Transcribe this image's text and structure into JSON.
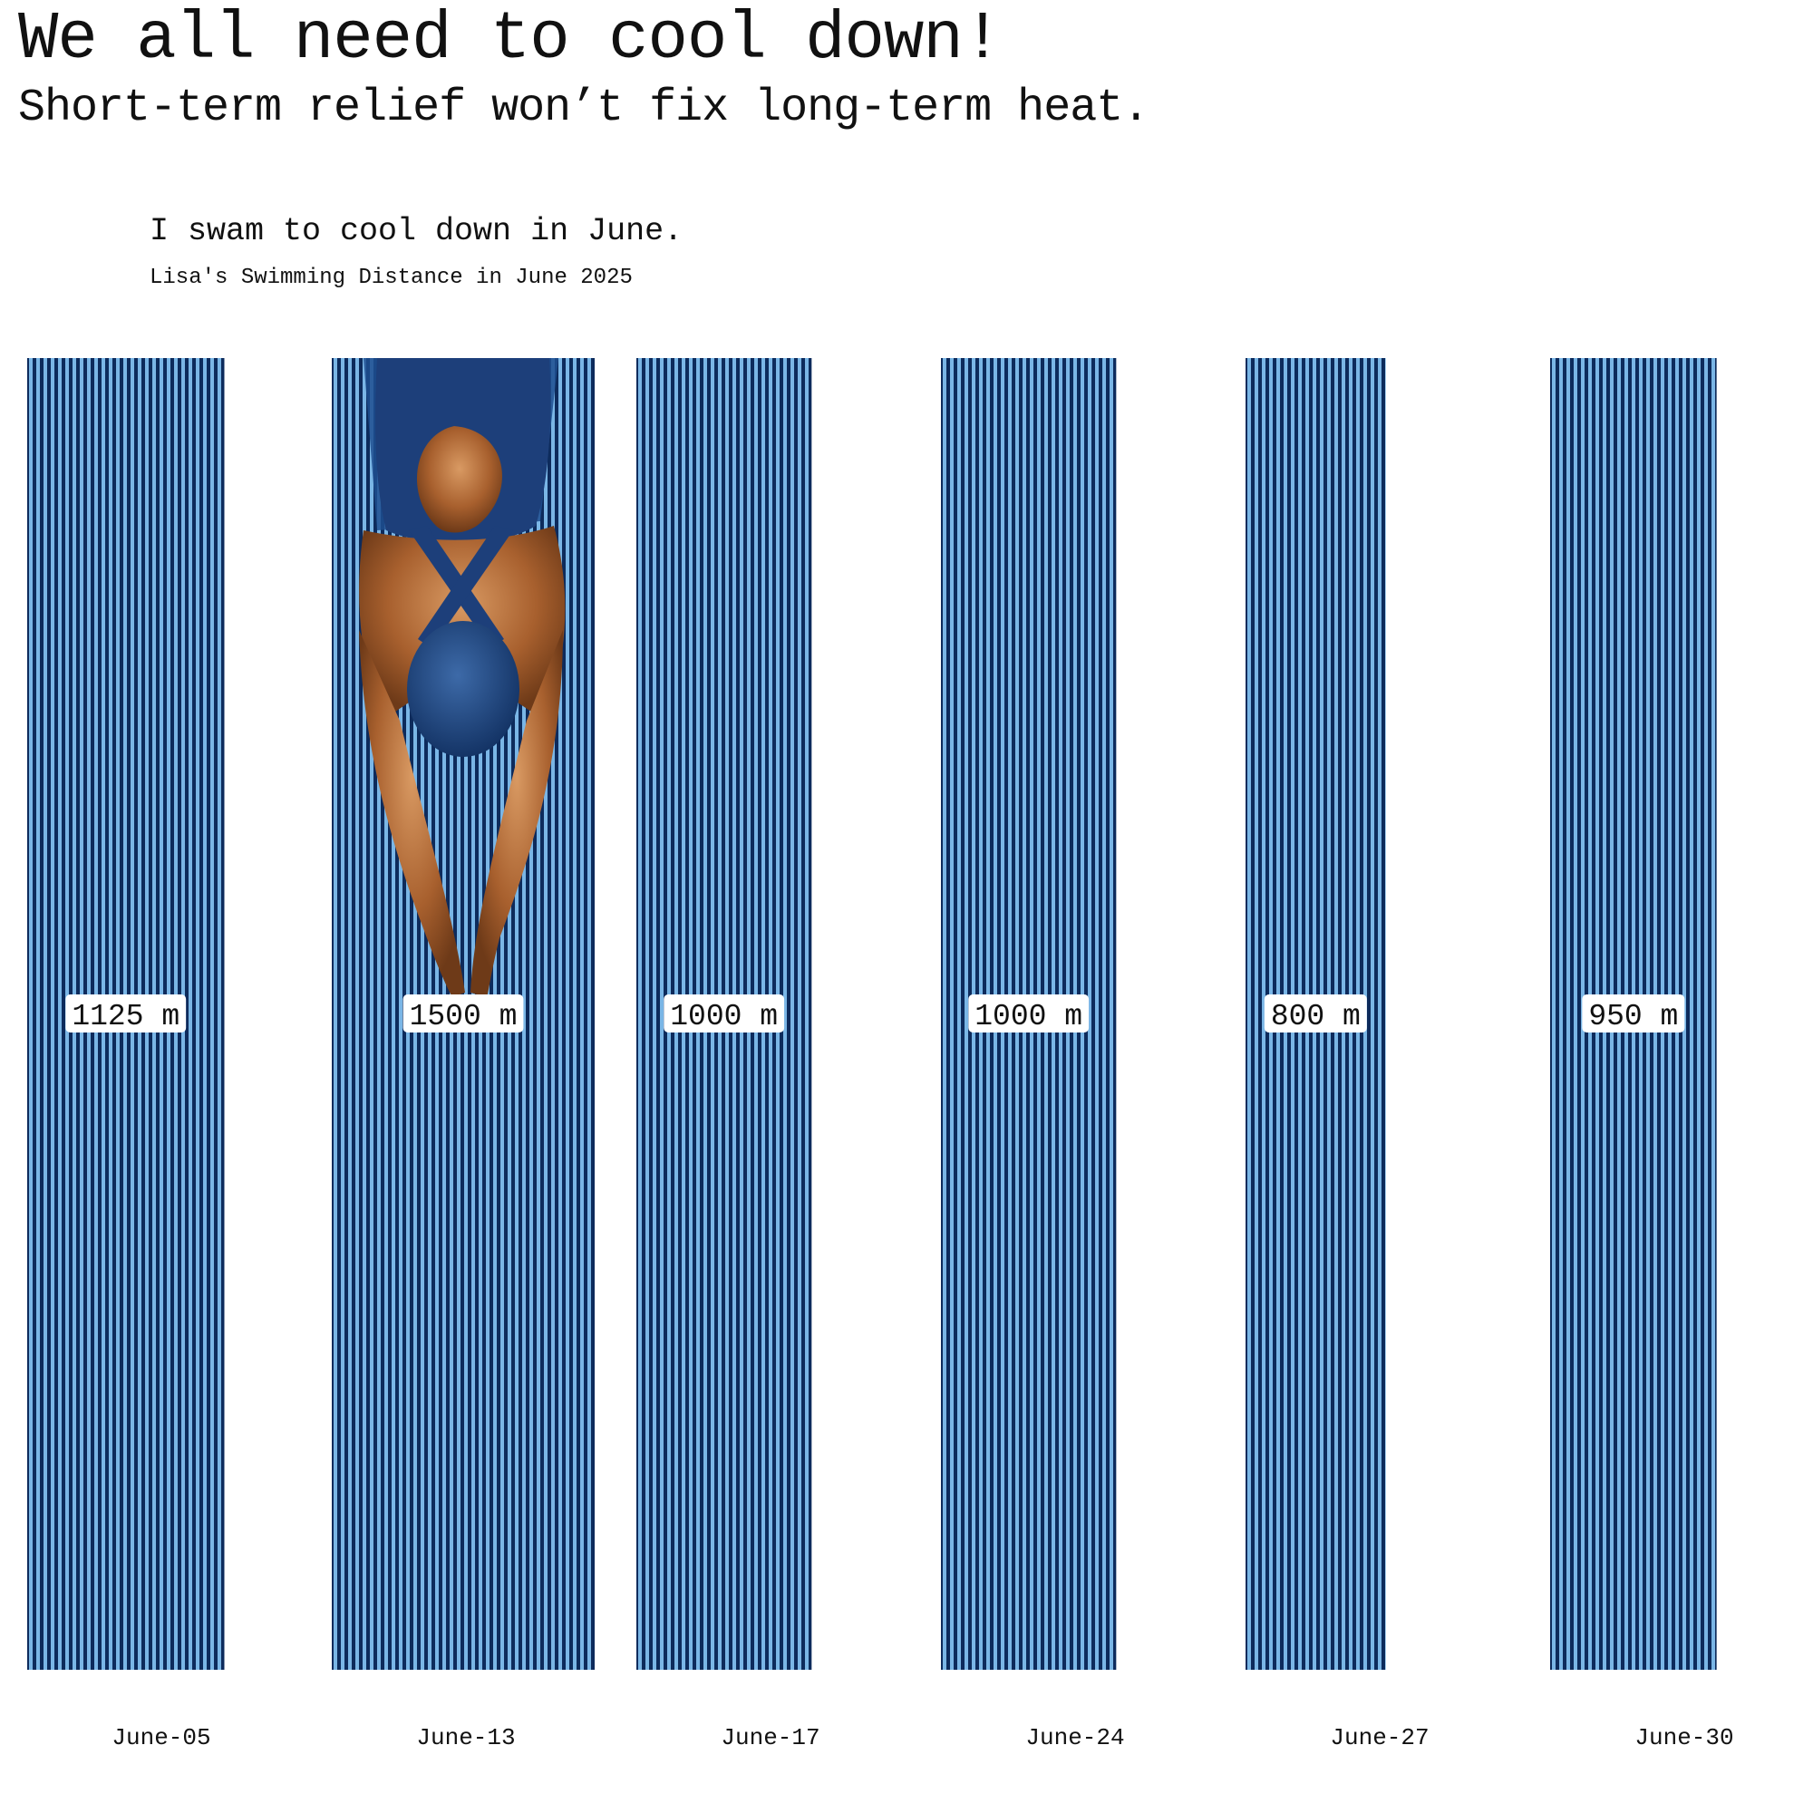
{
  "header": {
    "headline": "We all need to cool down!",
    "subheadline": "Short-term relief won’t fix long-term heat."
  },
  "chart_data": {
    "type": "bar",
    "title": "I swam to cool down in June.",
    "subtitle": "Lisa's Swimming Distance in June 2025",
    "categories": [
      "June-05",
      "June-13",
      "June-17",
      "June-24",
      "June-27",
      "June-30"
    ],
    "values": [
      1125,
      1500,
      1000,
      1000,
      800,
      950
    ],
    "value_labels": [
      "1125 m",
      "1500 m",
      "1000 m",
      "1000 m",
      "800 m",
      "950 m"
    ],
    "unit": "m",
    "grid": false,
    "illustration": "swimmer-image on June-13 bar",
    "colors": {
      "stripe_light": "#7ab6e6",
      "stripe_dark": "#0d2b5c",
      "label_bg": "#ffffff"
    }
  }
}
